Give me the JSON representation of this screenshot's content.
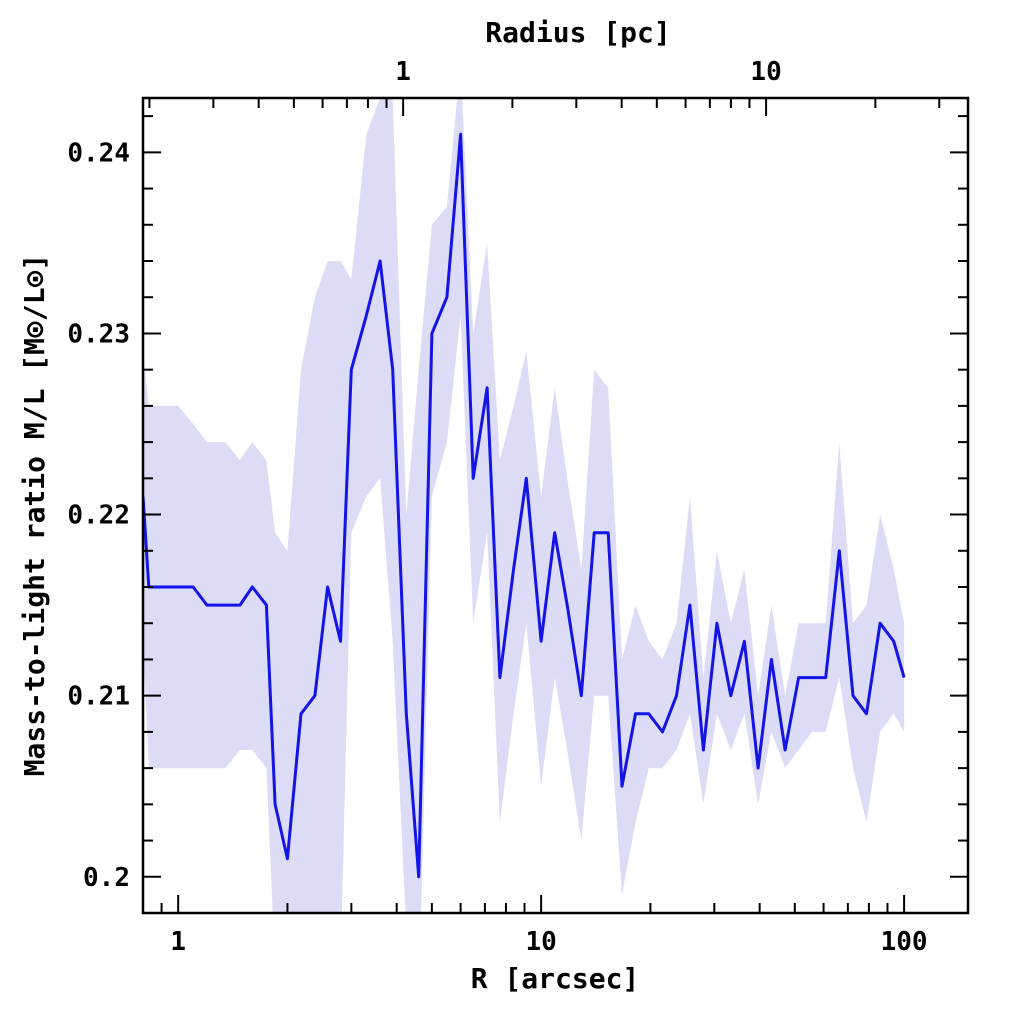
{
  "chart_data": {
    "type": "line",
    "xlabel": "R [arcsec]",
    "x2label": "Radius [pc]",
    "ylabel": "Mass-to-light ratio M/L [M⊙/L⊙]",
    "xscale": "log",
    "xlim": [
      0.8,
      150
    ],
    "ylim": [
      0.198,
      0.243
    ],
    "x2_pc_per_arcsec": 0.24,
    "x_ticks": [
      1,
      10,
      100
    ],
    "x_tick_labels": [
      "1",
      "10",
      "100"
    ],
    "x2_ticks": [
      1,
      10
    ],
    "x2_tick_labels": [
      "1",
      "10"
    ],
    "y_ticks": [
      0.2,
      0.21,
      0.22,
      0.23,
      0.24
    ],
    "y_tick_labels": [
      "0.2",
      "0.21",
      "0.22",
      "0.23",
      "0.24"
    ],
    "grid": false,
    "colors": {
      "line": "#1414e6",
      "band": "#dcdcf7"
    },
    "series": [
      {
        "x": [
          0.8,
          0.83,
          0.9,
          1.0,
          1.1,
          1.2,
          1.35,
          1.48,
          1.6,
          1.75,
          1.85,
          2.0,
          2.18,
          2.38,
          2.58,
          2.8,
          3.0,
          3.3,
          3.6,
          3.9,
          4.25,
          4.6,
          5.0,
          5.5,
          6.0,
          6.5,
          7.1,
          7.7,
          8.4,
          9.1,
          10.0,
          10.9,
          11.8,
          12.9,
          14.0,
          15.3,
          16.7,
          18.2,
          19.8,
          21.6,
          23.6,
          25.7,
          28.0,
          30.5,
          33.3,
          36.3,
          39.6,
          43.1,
          47.0,
          51.2,
          55.8,
          60.8,
          66.3,
          72.3,
          78.8,
          85.9,
          93.6,
          100.0
        ],
        "y": [
          0.221,
          0.216,
          0.216,
          0.216,
          0.216,
          0.215,
          0.215,
          0.215,
          0.216,
          0.215,
          0.204,
          0.201,
          0.209,
          0.21,
          0.216,
          0.213,
          0.228,
          0.231,
          0.234,
          0.228,
          0.209,
          0.2,
          0.23,
          0.232,
          0.241,
          0.222,
          0.227,
          0.211,
          0.217,
          0.222,
          0.213,
          0.219,
          0.215,
          0.21,
          0.219,
          0.219,
          0.205,
          0.209,
          0.209,
          0.208,
          0.21,
          0.215,
          0.207,
          0.214,
          0.21,
          0.213,
          0.206,
          0.212,
          0.207,
          0.211,
          0.211,
          0.211,
          0.218,
          0.21,
          0.209,
          0.214,
          0.213,
          0.211
        ],
        "y_lower": [
          0.213,
          0.206,
          0.206,
          0.206,
          0.206,
          0.206,
          0.206,
          0.207,
          0.207,
          0.206,
          0.195,
          0.193,
          0.195,
          0.195,
          0.195,
          0.195,
          0.219,
          0.221,
          0.222,
          0.213,
          0.197,
          0.193,
          0.221,
          0.224,
          0.231,
          0.214,
          0.219,
          0.203,
          0.209,
          0.214,
          0.205,
          0.211,
          0.207,
          0.202,
          0.21,
          0.21,
          0.199,
          0.203,
          0.206,
          0.206,
          0.207,
          0.209,
          0.204,
          0.209,
          0.207,
          0.209,
          0.204,
          0.208,
          0.206,
          0.207,
          0.208,
          0.208,
          0.211,
          0.206,
          0.203,
          0.208,
          0.209,
          0.208
        ],
        "y_upper": [
          0.229,
          0.226,
          0.226,
          0.226,
          0.225,
          0.224,
          0.224,
          0.223,
          0.224,
          0.223,
          0.219,
          0.218,
          0.228,
          0.232,
          0.234,
          0.234,
          0.233,
          0.241,
          0.243,
          0.243,
          0.22,
          0.228,
          0.236,
          0.237,
          0.245,
          0.23,
          0.235,
          0.223,
          0.226,
          0.229,
          0.221,
          0.227,
          0.222,
          0.217,
          0.228,
          0.227,
          0.212,
          0.215,
          0.213,
          0.212,
          0.214,
          0.221,
          0.211,
          0.218,
          0.214,
          0.217,
          0.21,
          0.215,
          0.21,
          0.214,
          0.214,
          0.214,
          0.224,
          0.214,
          0.215,
          0.22,
          0.217,
          0.214
        ]
      }
    ]
  }
}
